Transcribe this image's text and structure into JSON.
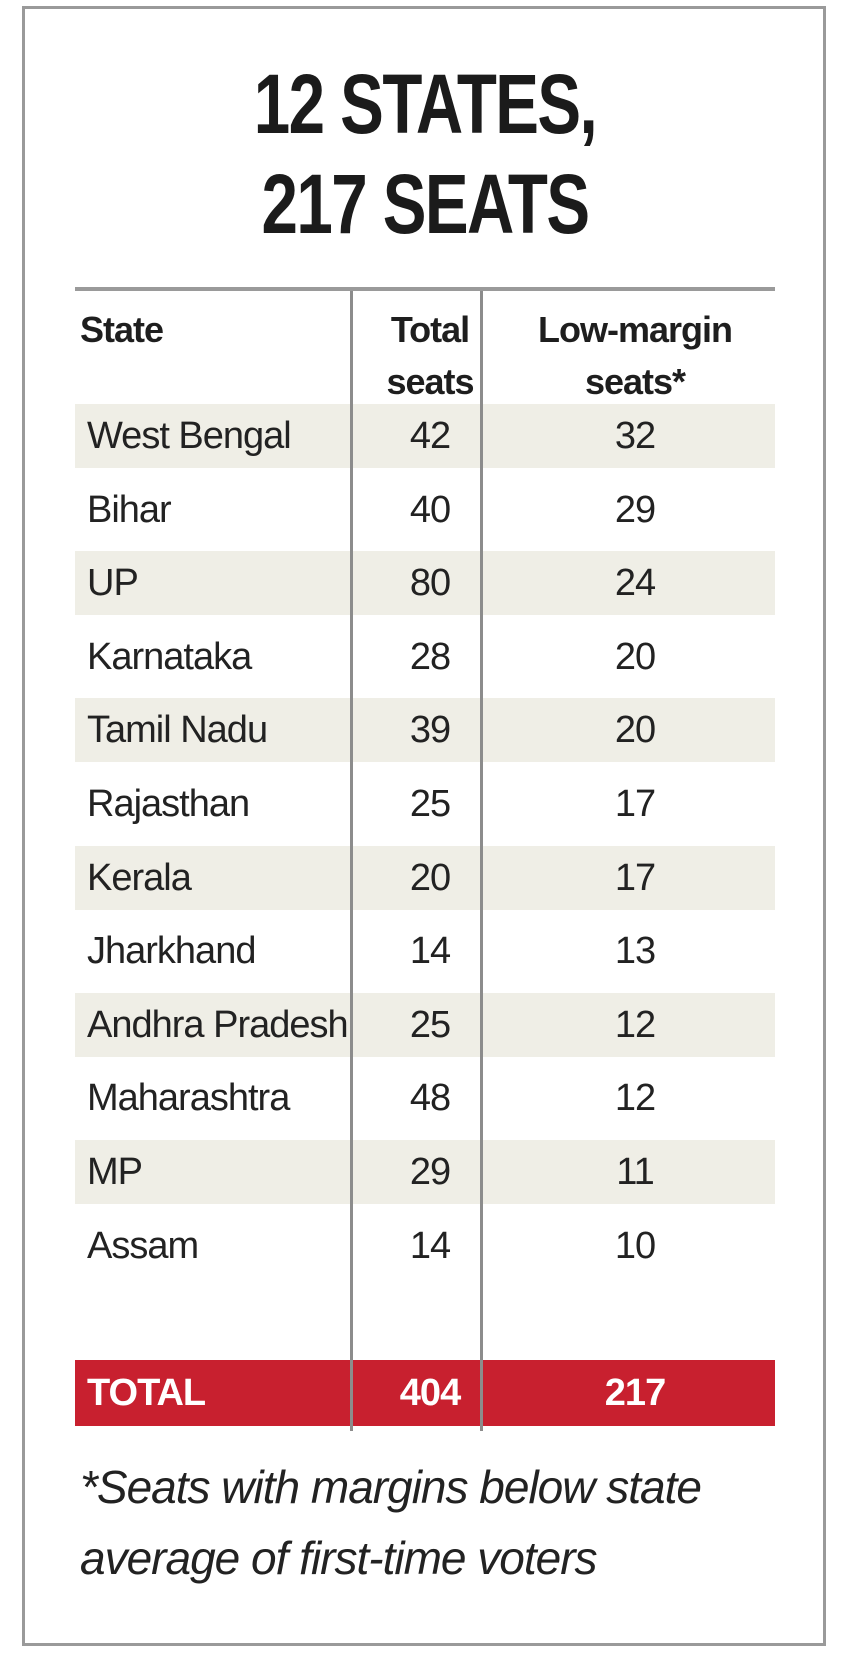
{
  "title_line1": "12 STATES,",
  "title_line2": "217 SEATS",
  "headers": {
    "state": "State",
    "total_line1": "Total",
    "total_line2": "seats",
    "low_line1": "Low-margin",
    "low_line2": "seats*"
  },
  "rows": [
    {
      "state": "West Bengal",
      "total": "42",
      "low": "32"
    },
    {
      "state": "Bihar",
      "total": "40",
      "low": "29"
    },
    {
      "state": "UP",
      "total": "80",
      "low": "24"
    },
    {
      "state": "Karnataka",
      "total": "28",
      "low": "20"
    },
    {
      "state": "Tamil Nadu",
      "total": "39",
      "low": "20"
    },
    {
      "state": "Rajasthan",
      "total": "25",
      "low": "17"
    },
    {
      "state": "Kerala",
      "total": "20",
      "low": "17"
    },
    {
      "state": "Jharkhand",
      "total": "14",
      "low": "13"
    },
    {
      "state": "Andhra Pradesh",
      "total": "25",
      "low": "12"
    },
    {
      "state": "Maharashtra",
      "total": "48",
      "low": "12"
    },
    {
      "state": "MP",
      "total": "29",
      "low": "11"
    },
    {
      "state": "Assam",
      "total": "14",
      "low": "10"
    }
  ],
  "total_row": {
    "label": "TOTAL",
    "total": "404",
    "low": "217"
  },
  "footnote_line1": "*Seats with margins below state",
  "footnote_line2": "average of first-time voters",
  "colors": {
    "accent": "#c8202f",
    "shade": "#efeee6",
    "rule": "#9a9a9a"
  },
  "chart_data": {
    "type": "table",
    "title": "12 STATES, 217 SEATS",
    "columns": [
      "State",
      "Total seats",
      "Low-margin seats*"
    ],
    "categories": [
      "West Bengal",
      "Bihar",
      "UP",
      "Karnataka",
      "Tamil Nadu",
      "Rajasthan",
      "Kerala",
      "Jharkhand",
      "Andhra Pradesh",
      "Maharashtra",
      "MP",
      "Assam"
    ],
    "series": [
      {
        "name": "Total seats",
        "values": [
          42,
          40,
          80,
          28,
          39,
          25,
          20,
          14,
          25,
          48,
          29,
          14
        ]
      },
      {
        "name": "Low-margin seats*",
        "values": [
          32,
          29,
          24,
          20,
          20,
          17,
          17,
          13,
          12,
          12,
          11,
          10
        ]
      }
    ],
    "totals": {
      "Total seats": 404,
      "Low-margin seats*": 217
    }
  }
}
